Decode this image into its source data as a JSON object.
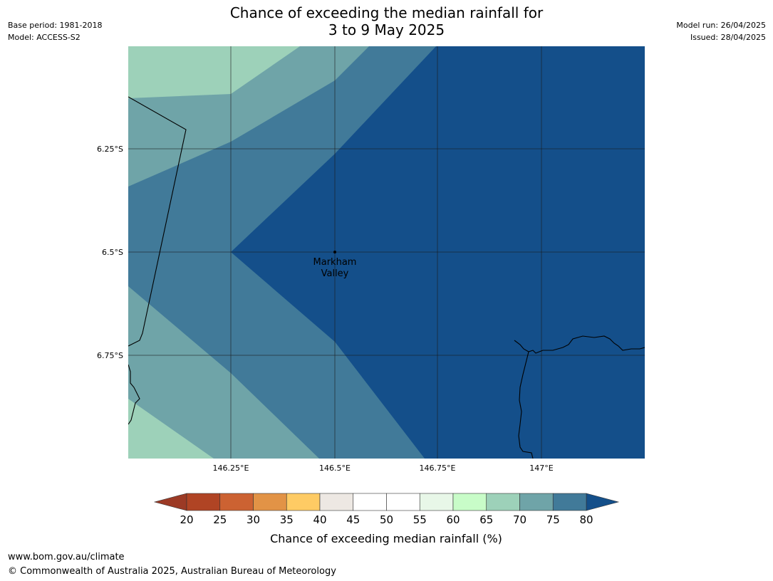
{
  "title": {
    "line1": "Chance of exceeding the median rainfall for",
    "line2": "3 to 9 May 2025"
  },
  "meta": {
    "base_period": "Base period: 1981-2018",
    "model": "Model: ACCESS-S2",
    "model_run": "Model run: 26/04/2025",
    "issued": "Issued: 28/04/2025"
  },
  "map": {
    "lon_ticks": [
      "146.25°E",
      "146.5°E",
      "146.75°E",
      "147°E"
    ],
    "lat_ticks": [
      "6.25°S",
      "6.5°S",
      "6.75°S"
    ],
    "place": {
      "name_line1": "Markham",
      "name_line2": "Valley"
    }
  },
  "colorbar": {
    "label": "Chance of exceeding median rainfall (%)",
    "ticks": [
      "20",
      "25",
      "30",
      "35",
      "40",
      "45",
      "50",
      "55",
      "60",
      "65",
      "70",
      "75",
      "80"
    ],
    "colors": [
      "#b04424",
      "#cc6232",
      "#e29346",
      "#fecb64",
      "#ede8e3",
      "#ffffff",
      "#ffffff",
      "#e8f7e8",
      "#c8fcc8",
      "#9dd1b9",
      "#6fa4a8",
      "#417a99"
    ],
    "under_color": "#9c3a25",
    "over_color": "#144f8a"
  },
  "footer": {
    "url": "www.bom.gov.au/climate",
    "copyright": "© Commonwealth of Australia 2025, Australian Bureau of Meteorology"
  }
}
